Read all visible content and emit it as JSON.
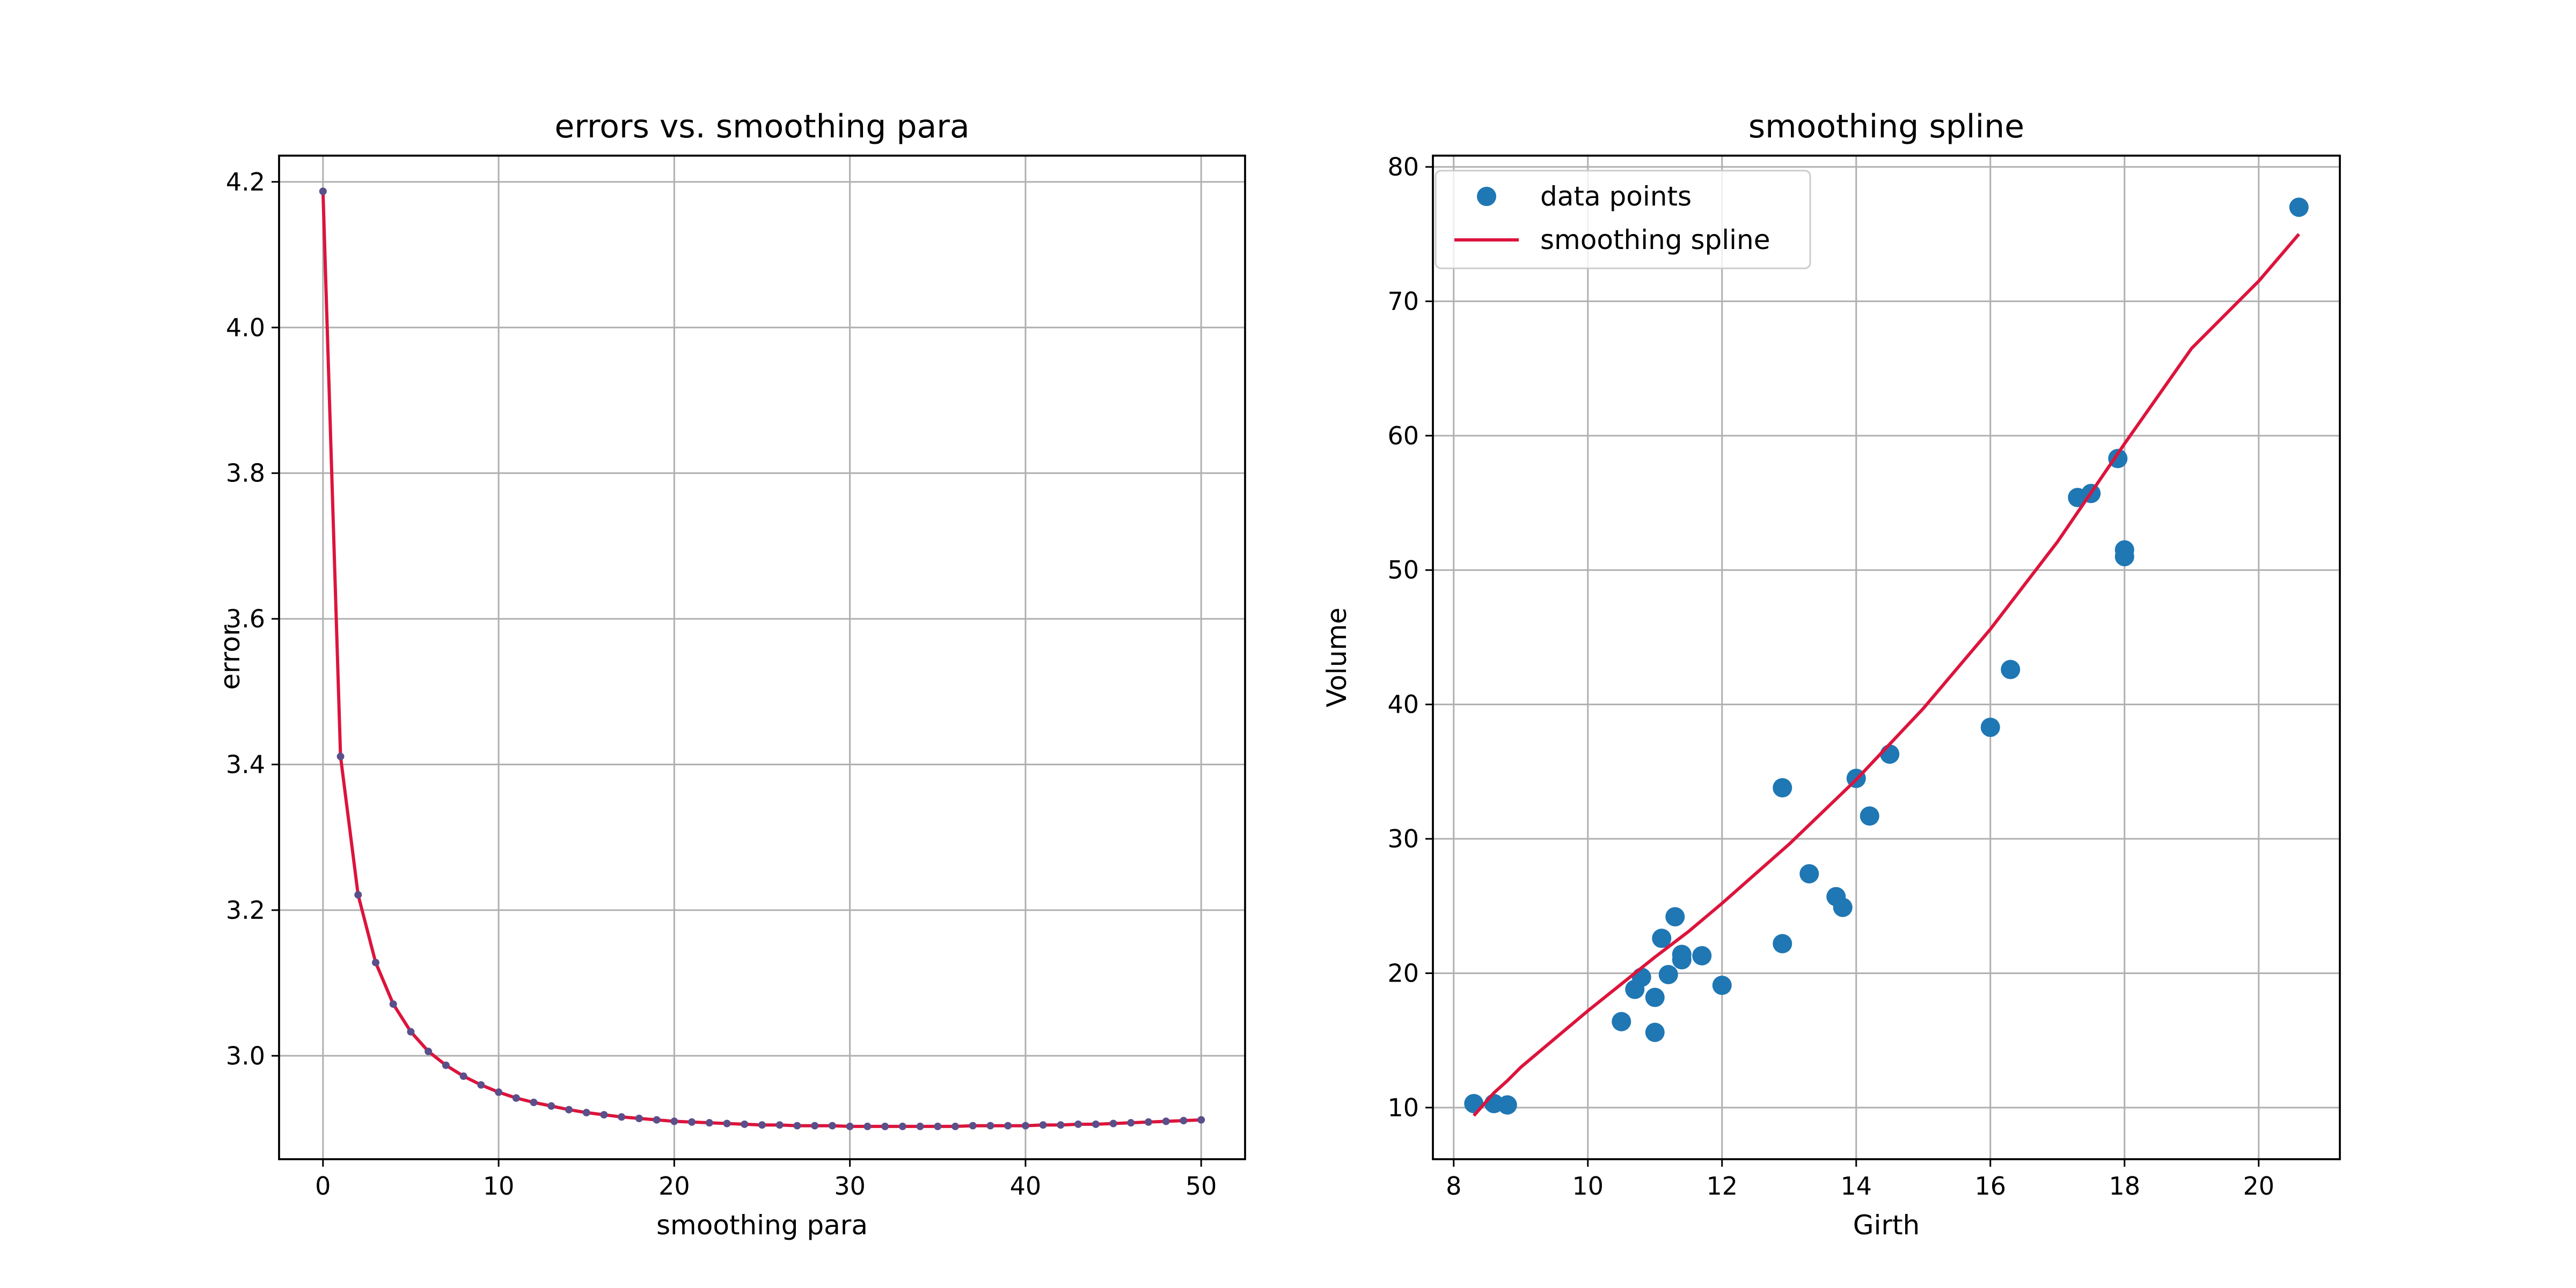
{
  "chart_data": [
    {
      "type": "line",
      "title": "errors vs. smoothing para",
      "xlabel": "smoothing para",
      "ylabel": "error",
      "xlim": [
        -2.5,
        52.5
      ],
      "ylim": [
        2.858,
        4.236
      ],
      "xticks": [
        0,
        10,
        20,
        30,
        40,
        50
      ],
      "yticks": [
        3.0,
        3.2,
        3.4,
        3.6,
        3.8,
        4.0,
        4.2
      ],
      "xtick_labels": [
        "0",
        "10",
        "20",
        "30",
        "40",
        "50"
      ],
      "ytick_labels": [
        "3.0",
        "3.2",
        "3.4",
        "3.6",
        "3.8",
        "4.0",
        "4.2"
      ],
      "grid": true,
      "line_color": "#dc143c",
      "marker_color": "#5a4f8a",
      "series": [
        {
          "x": [
            0,
            1,
            2,
            3,
            4,
            5,
            6,
            7,
            8,
            9,
            10,
            11,
            12,
            13,
            14,
            15,
            16,
            17,
            18,
            19,
            20,
            21,
            22,
            23,
            24,
            25,
            26,
            27,
            28,
            29,
            30,
            31,
            32,
            33,
            34,
            35,
            36,
            37,
            38,
            39,
            40,
            41,
            42,
            43,
            44,
            45,
            46,
            47,
            48,
            49,
            50
          ],
          "values": [
            4.187,
            3.411,
            3.221,
            3.128,
            3.071,
            3.033,
            3.006,
            2.987,
            2.972,
            2.96,
            2.95,
            2.942,
            2.936,
            2.931,
            2.926,
            2.922,
            2.919,
            2.916,
            2.914,
            2.912,
            2.91,
            2.909,
            2.908,
            2.907,
            2.906,
            2.905,
            2.905,
            2.904,
            2.904,
            2.904,
            2.903,
            2.903,
            2.903,
            2.903,
            2.903,
            2.903,
            2.903,
            2.904,
            2.904,
            2.904,
            2.904,
            2.905,
            2.905,
            2.906,
            2.906,
            2.907,
            2.908,
            2.909,
            2.91,
            2.911,
            2.912
          ]
        }
      ]
    },
    {
      "type": "scatter",
      "title": "smoothing spline",
      "xlabel": "Girth",
      "ylabel": "Volume",
      "xlim": [
        7.69,
        21.21
      ],
      "ylim": [
        6.16,
        80.84
      ],
      "xticks": [
        8,
        10,
        12,
        14,
        16,
        18,
        20
      ],
      "yticks": [
        10,
        20,
        30,
        40,
        50,
        60,
        70,
        80
      ],
      "xtick_labels": [
        "8",
        "10",
        "12",
        "14",
        "16",
        "18",
        "20"
      ],
      "ytick_labels": [
        "10",
        "20",
        "30",
        "40",
        "50",
        "60",
        "70",
        "80"
      ],
      "grid": true,
      "legend_position": "top-left",
      "series": [
        {
          "name": "data points",
          "kind": "scatter",
          "color": "#1f77b4",
          "x": [
            8.3,
            8.6,
            8.8,
            10.5,
            10.7,
            10.8,
            11.0,
            11.0,
            11.1,
            11.2,
            11.3,
            11.4,
            11.4,
            11.7,
            12.0,
            12.9,
            12.9,
            13.3,
            13.7,
            13.8,
            14.0,
            14.2,
            14.5,
            16.0,
            16.3,
            17.3,
            17.5,
            17.9,
            18.0,
            18.0,
            20.6
          ],
          "values": [
            10.3,
            10.3,
            10.2,
            16.4,
            18.8,
            19.7,
            15.6,
            18.2,
            22.6,
            19.9,
            24.2,
            21.0,
            21.4,
            21.3,
            19.1,
            22.2,
            33.8,
            27.4,
            25.7,
            24.9,
            34.5,
            31.7,
            36.3,
            38.3,
            42.6,
            55.4,
            55.7,
            58.3,
            51.5,
            51.0,
            77.0
          ]
        },
        {
          "name": "smoothing spline",
          "kind": "line",
          "color": "#dc143c",
          "x": [
            8.3,
            8.6,
            8.8,
            9.0,
            10.0,
            10.5,
            11.0,
            11.5,
            12.0,
            13.0,
            14.0,
            15.0,
            16.0,
            17.0,
            18.0,
            19.0,
            20.0,
            20.6
          ],
          "values": [
            9.4,
            11.1,
            12.0,
            13.0,
            17.2,
            19.2,
            21.2,
            23.1,
            25.2,
            29.6,
            34.4,
            39.7,
            45.6,
            52.1,
            59.4,
            66.5,
            71.5,
            75.0
          ]
        }
      ]
    }
  ]
}
